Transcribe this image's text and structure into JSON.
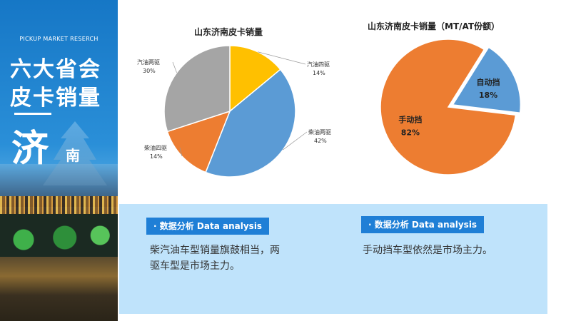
{
  "sidebar": {
    "brand": "PICKUP MARKET RESERCH",
    "title_line1": "六大省会",
    "title_line2": "皮卡销量",
    "city_big": "济",
    "city_small": "南"
  },
  "chart_data": [
    {
      "type": "pie",
      "title": "山东济南皮卡销量",
      "slices": [
        {
          "name": "汽油四驱",
          "value": 14,
          "label": "14%",
          "color": "#ffc000"
        },
        {
          "name": "柴油两驱",
          "value": 42,
          "label": "42%",
          "color": "#5b9bd5"
        },
        {
          "name": "柴油四驱",
          "value": 14,
          "label": "14%",
          "color": "#ed7d31"
        },
        {
          "name": "汽油两驱",
          "value": 30,
          "label": "30%",
          "color": "#a5a5a5"
        }
      ],
      "legend": "none"
    },
    {
      "type": "pie",
      "title": "山东济南皮卡销量（MT/AT份额）",
      "slices": [
        {
          "name": "自动挡",
          "value": 18,
          "label": "18%",
          "color": "#5b9bd5"
        },
        {
          "name": "手动挡",
          "value": 82,
          "label": "82%",
          "color": "#ed7d31"
        }
      ],
      "legend": "none"
    }
  ],
  "analysis": {
    "tag_left": "数据分析 Data analysis",
    "text_left": "柴汽油车型销量旗鼓相当，两驱车型是市场主力。",
    "tag_right": "数据分析 Data analysis",
    "text_right": "手动挡车型依然是市场主力。"
  }
}
